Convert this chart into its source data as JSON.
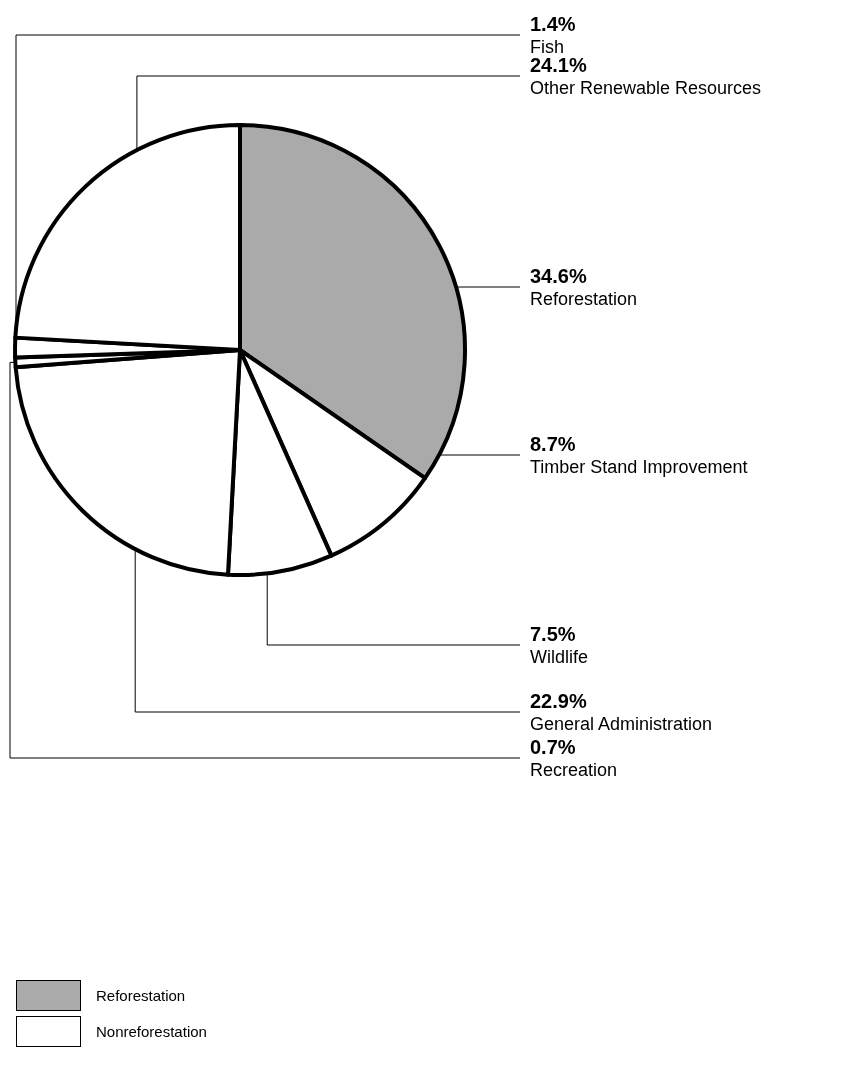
{
  "chart_data": {
    "type": "pie",
    "categories": [
      "Reforestation",
      "Timber Stand Improvement",
      "Wildlife",
      "General Administration",
      "Recreation",
      "Fish",
      "Other Renewable Resources"
    ],
    "values": [
      34.6,
      8.7,
      7.5,
      22.9,
      0.7,
      1.4,
      24.1
    ],
    "value_labels": [
      "34.6%",
      "8.7%",
      "7.5%",
      "22.9%",
      "0.7%",
      "1.4%",
      "24.1%"
    ],
    "colors": [
      "#aaaaaa",
      "#ffffff",
      "#ffffff",
      "#ffffff",
      "#ffffff",
      "#ffffff",
      "#ffffff"
    ],
    "annotations": [
      "Reforestation",
      "Nonreforestation"
    ]
  }
}
